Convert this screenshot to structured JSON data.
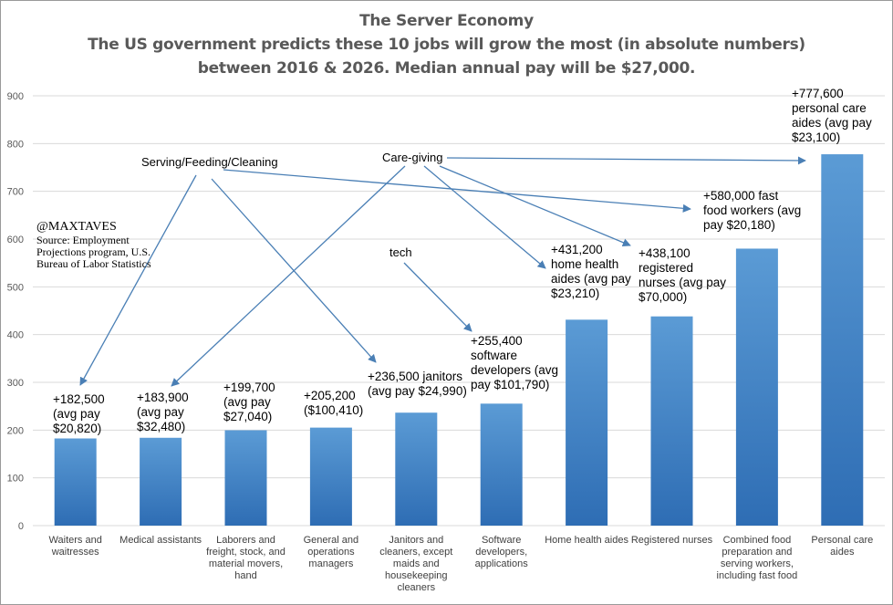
{
  "title": {
    "line1": "The Server Economy",
    "line2": "The US government predicts these 10 jobs will grow the most (in absolute numbers)",
    "line3": "between 2016 & 2026. Median annual pay will be $27,000."
  },
  "credit": {
    "handle": "@MAXTAVES",
    "source1": "Source: Employment",
    "source2": "Projections program, U.S.",
    "source3": "Bureau of Labor Statistics"
  },
  "colors": {
    "bar_top": "#5b9bd5",
    "bar_bottom": "#2e6db4",
    "arrow": "#4a7fb5",
    "grid": "#d9d9d9"
  },
  "chart_data": {
    "type": "bar",
    "ylim": [
      0,
      900
    ],
    "yticks": [
      0,
      100,
      200,
      300,
      400,
      500,
      600,
      700,
      800,
      900
    ],
    "grid": true,
    "categories": [
      [
        "Waiters and",
        "waitresses"
      ],
      [
        "Medical assistants"
      ],
      [
        "Laborers and",
        "freight, stock, and",
        "material movers,",
        "hand"
      ],
      [
        "General and",
        "operations",
        "managers"
      ],
      [
        "Janitors and",
        "cleaners, except",
        "maids and",
        "housekeeping",
        "cleaners"
      ],
      [
        "Software",
        "developers,",
        "applications"
      ],
      [
        "Home health aides"
      ],
      [
        "Registered nurses"
      ],
      [
        "Combined food",
        "preparation and",
        "serving workers,",
        "including fast food"
      ],
      [
        "Personal care aides"
      ]
    ],
    "values": [
      182.5,
      183.9,
      199.7,
      205.2,
      236.5,
      255.4,
      431.2,
      438.1,
      580.0,
      777.6
    ],
    "data_labels": [
      [
        "+182,500",
        "(avg pay",
        "$20,820)"
      ],
      [
        "+183,900",
        "(avg pay",
        "$32,480)"
      ],
      [
        "+199,700",
        "(avg pay",
        "$27,040)"
      ],
      [
        "+205,200",
        "($100,410)"
      ],
      [
        "+236,500 janitors",
        "(avg pay $24,990)"
      ],
      [
        "+255,400",
        "software",
        "developers (avg",
        "pay $101,790)"
      ],
      [
        "+431,200",
        "home health",
        "aides (avg pay",
        "$23,210)"
      ],
      [
        "+438,100",
        "registered",
        "nurses (avg pay",
        "$70,000)"
      ],
      [
        "+580,000 fast",
        "food workers (avg",
        "pay $20,180)"
      ],
      [
        "+777,600",
        "personal care",
        "aides (avg pay",
        "$23,100)"
      ]
    ],
    "annotations": [
      {
        "text": "Serving/Feeding/Cleaning",
        "targets": [
          0,
          4,
          8
        ]
      },
      {
        "text": "Care-giving",
        "targets": [
          1,
          6,
          7,
          9
        ]
      },
      {
        "text": "tech",
        "targets": [
          5
        ]
      }
    ]
  }
}
